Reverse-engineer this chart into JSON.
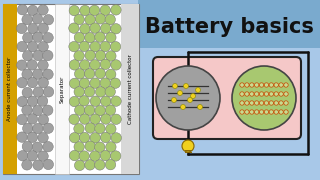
{
  "bg_color": "#a8c8e8",
  "title_banner_color": "#7aaace",
  "title": "Battery basics",
  "title_color": "#111111",
  "title_fontsize": 15,
  "anode_collector_color": "#d4a000",
  "anode_sphere_color": "#a0a0a0",
  "cathode_sphere_color": "#a8c870",
  "separator_color": "#f0f0f0",
  "cathode_collector_color": "#d8d8d8",
  "battery_box_color": "#f5c8c8",
  "battery_box_border": "#222222",
  "anode_circle_color": "#a0a0a0",
  "cathode_circle_color": "#a8c870",
  "wire_color": "#111111",
  "bulb_color": "#f0d020",
  "bulb_body_color": "#e8c010",
  "label_anode": "Anode current collector",
  "label_separator": "Separator",
  "label_cathode": "Cathode current collector",
  "panel_bg": "#ffffff",
  "panel_border": "#777777",
  "sphere_edge": "#777777",
  "graphene_color": "#333333",
  "li_color": "#f0d020",
  "li_edge": "#888800",
  "cathode_chain_color": "#cc4400",
  "cathode_node_color": "#88aa55"
}
